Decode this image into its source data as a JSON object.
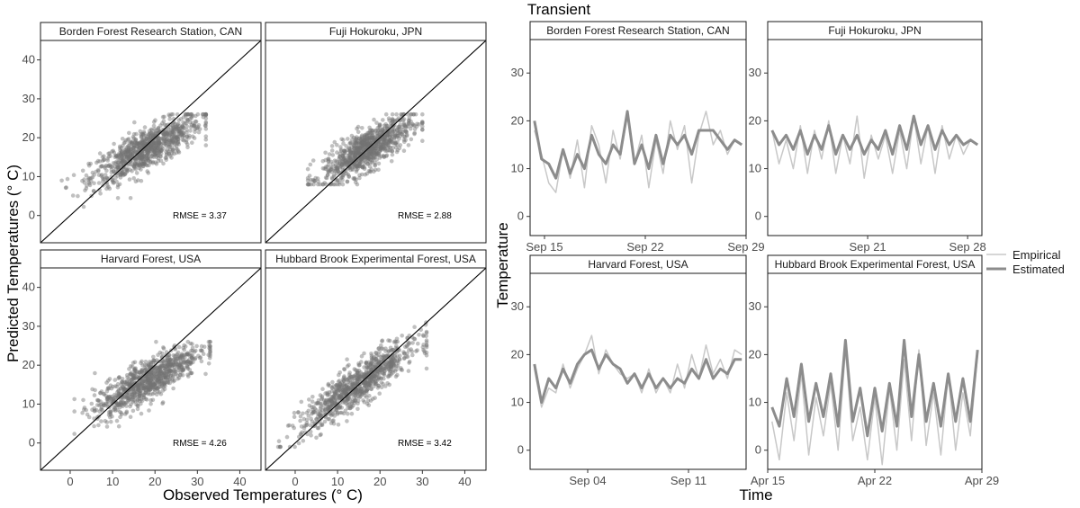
{
  "figure": {
    "title": "Transient",
    "left_xlabel": "Observed Temperatures (° C)",
    "left_ylabel": "Predicted Temperatures (° C)",
    "right_xlabel": "Time",
    "right_ylabel": "Temperature"
  },
  "legend": {
    "items": [
      {
        "label": "Empirical",
        "color": "#c8c8c8"
      },
      {
        "label": "Estimated",
        "color": "#8c8c8c"
      }
    ]
  },
  "colors": {
    "points": "#737373",
    "empirical": "#c8c8c8",
    "estimated": "#8c8c8c"
  },
  "chart_data": [
    {
      "type": "scatter",
      "xlabel": "Observed Temperatures (° C)",
      "ylabel": "Predicted Temperatures (° C)",
      "xlim": [
        -7,
        45
      ],
      "ylim": [
        -7,
        45
      ],
      "x_ticks": [
        0,
        10,
        20,
        30,
        40
      ],
      "y_ticks": [
        0,
        10,
        20,
        30,
        40
      ],
      "reference_line": "y = x",
      "panels": [
        {
          "name": "Borden Forest Research Station, CAN",
          "rmse_label": "RMSE = 3.37",
          "point_cloud": {
            "x_range": [
              -2,
              32
            ],
            "y_range": [
              1,
              26
            ],
            "center": [
              18,
              17
            ],
            "fit_slope": 0.55
          }
        },
        {
          "name": "Fuji Hokuroku, JPN",
          "rmse_label": "RMSE = 2.88",
          "point_cloud": {
            "x_range": [
              3,
              30
            ],
            "y_range": [
              8,
              26
            ],
            "center": [
              17,
              17
            ],
            "fit_slope": 0.6
          }
        },
        {
          "name": "Harvard Forest, USA",
          "rmse_label": "RMSE = 4.26",
          "point_cloud": {
            "x_range": [
              1,
              33
            ],
            "y_range": [
              -1,
              26
            ],
            "center": [
              18,
              16
            ],
            "fit_slope": 0.6
          }
        },
        {
          "name": "Hubbard Brook Experimental Forest, USA",
          "rmse_label": "RMSE = 3.42",
          "point_cloud": {
            "x_range": [
              -4,
              31
            ],
            "y_range": [
              -1,
              31
            ],
            "center": [
              15,
              15
            ],
            "fit_slope": 0.75
          }
        }
      ]
    },
    {
      "type": "line",
      "ylabel": "Temperature",
      "xlabel": "Time",
      "ylim": [
        -4,
        37
      ],
      "y_ticks": [
        0,
        10,
        20,
        30
      ],
      "series": [
        {
          "name": "Empirical"
        },
        {
          "name": "Estimated"
        }
      ],
      "panels": [
        {
          "name": "Borden Forest Research Station, CAN",
          "date_range": [
            "2014-09-14",
            "2014-09-29"
          ],
          "x_ticks": [
            "Sep 15",
            "Sep 22",
            "Sep 29"
          ],
          "empirical": [
            18,
            13,
            7,
            5,
            14,
            8,
            16,
            6,
            19,
            15,
            7,
            18,
            12,
            21,
            11,
            17,
            6,
            16,
            9,
            20,
            14,
            19,
            7,
            17,
            22,
            15,
            18,
            13,
            16,
            15
          ],
          "estimated": [
            20,
            12,
            11,
            8,
            14,
            9,
            13,
            10,
            17,
            13,
            11,
            15,
            13,
            22,
            11,
            15,
            10,
            17,
            11,
            17,
            15,
            17,
            13,
            18,
            18,
            18,
            16,
            14,
            16,
            15
          ]
        },
        {
          "name": "Fuji Hokuroku, JPN",
          "date_range": [
            "2014-09-14",
            "2014-09-29"
          ],
          "x_ticks": [
            "Sep 21",
            "Sep 28"
          ],
          "empirical": [
            18,
            11,
            16,
            10,
            19,
            9,
            18,
            12,
            20,
            9,
            17,
            11,
            21,
            8,
            17,
            12,
            17,
            9,
            18,
            10,
            21,
            11,
            19,
            9,
            19,
            12,
            17,
            13,
            16,
            15
          ],
          "estimated": [
            18,
            15,
            17,
            14,
            18,
            13,
            17,
            14,
            19,
            13,
            17,
            14,
            17,
            13,
            16,
            14,
            18,
            13,
            19,
            14,
            21,
            15,
            19,
            14,
            18,
            15,
            17,
            15,
            16,
            15
          ]
        },
        {
          "name": "Harvard Forest, USA",
          "date_range": [
            "2014-08-31",
            "2014-09-15"
          ],
          "x_ticks": [
            "Sep 04",
            "Sep 11"
          ],
          "empirical": [
            17,
            9,
            13,
            12,
            18,
            13,
            17,
            20,
            24,
            16,
            21,
            18,
            16,
            15,
            16,
            12,
            17,
            12,
            15,
            12,
            18,
            13,
            20,
            15,
            22,
            16,
            19,
            15,
            21,
            20
          ],
          "estimated": [
            18,
            10,
            15,
            13,
            17,
            14,
            18,
            20,
            21,
            17,
            20,
            18,
            17,
            14,
            16,
            13,
            16,
            13,
            15,
            13,
            15,
            14,
            17,
            15,
            19,
            15,
            17,
            16,
            19,
            19
          ]
        },
        {
          "name": "Hubbard Brook Experimental Forest, USA",
          "date_range": [
            "2014-04-15",
            "2014-04-29"
          ],
          "x_ticks": [
            "Apr 15",
            "Apr 22",
            "Apr 29"
          ],
          "empirical": [
            6,
            -2,
            12,
            2,
            16,
            -1,
            11,
            3,
            14,
            0,
            21,
            2,
            9,
            -2,
            11,
            -3,
            13,
            0,
            19,
            2,
            21,
            1,
            12,
            -1,
            16,
            0,
            12,
            3,
            20
          ],
          "estimated": [
            9,
            5,
            15,
            7,
            18,
            6,
            14,
            7,
            16,
            5,
            23,
            6,
            13,
            3,
            13,
            4,
            14,
            5,
            23,
            7,
            20,
            6,
            14,
            5,
            16,
            6,
            15,
            6,
            21
          ]
        }
      ]
    }
  ]
}
